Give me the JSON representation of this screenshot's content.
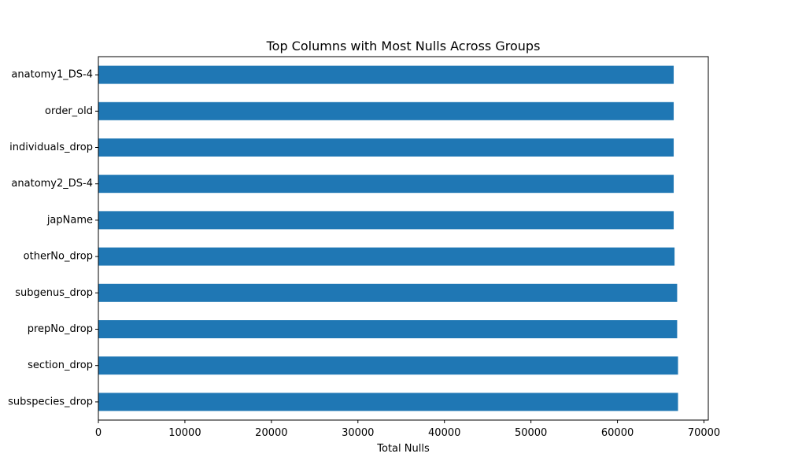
{
  "chart_data": {
    "type": "bar",
    "orientation": "horizontal",
    "title": "Top Columns with Most Nulls Across Groups",
    "xlabel": "Total Nulls",
    "ylabel": "",
    "xlim": [
      0,
      70500
    ],
    "xticks": [
      0,
      10000,
      20000,
      30000,
      40000,
      50000,
      60000,
      70000
    ],
    "grid": false,
    "legend": "none",
    "bar_color": "#1f77b4",
    "categories": [
      "anatomy1_DS-4",
      "order_old",
      "individuals_drop",
      "anatomy2_DS-4",
      "japName",
      "otherNo_drop",
      "subgenus_drop",
      "prepNo_drop",
      "section_drop",
      "subspecies_drop"
    ],
    "values": [
      66500,
      66500,
      66500,
      66500,
      66500,
      66600,
      66900,
      66900,
      67000,
      67000
    ]
  }
}
